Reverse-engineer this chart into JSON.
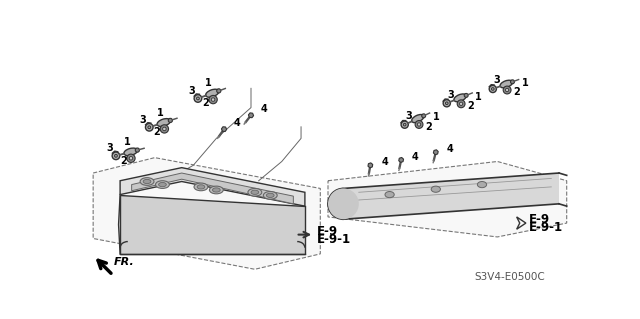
{
  "bg_color": "#ffffff",
  "diagram_code": "S3V4-E0500C",
  "text_color": "#000000",
  "line_color": "#333333",
  "gray1": "#b0b0b0",
  "gray2": "#888888",
  "gray3": "#d0d0d0",
  "dark": "#222222",
  "fr_label": "FR.",
  "e9": "E-9",
  "e91": "E-9-1"
}
